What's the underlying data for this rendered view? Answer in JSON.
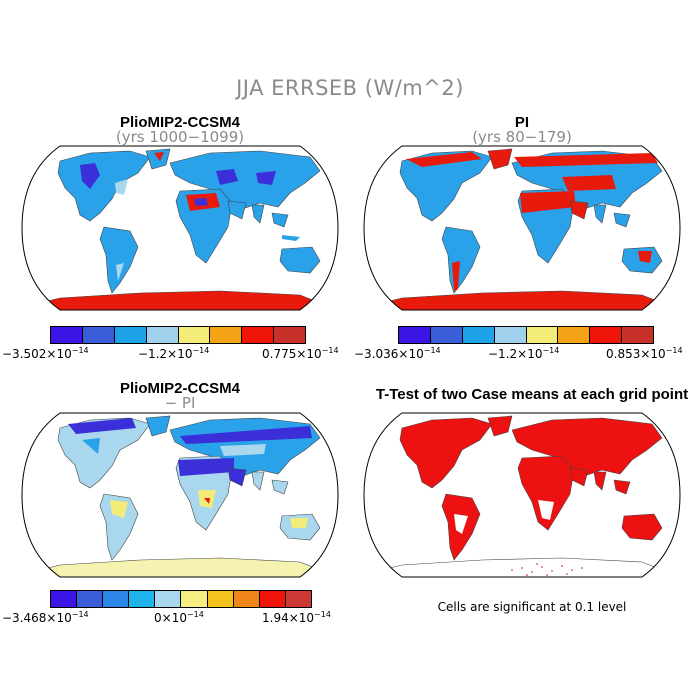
{
  "figure": {
    "title": "JJA ERRSEB (W/m^2)"
  },
  "panels": {
    "p1": {
      "title": "PlioMIP2-CCSM4",
      "subtitle": "(yrs 1000−1099)",
      "colorbar": {
        "colors": [
          "#3b14e6",
          "#3a5ed8",
          "#1fa3e8",
          "#9fd1ec",
          "#f3ec78",
          "#f3a315",
          "#f0150a",
          "#c8302a"
        ],
        "label_left": "−3.502×10",
        "label_mid": "−1.2×10",
        "label_right": "0.775×10",
        "exponent": "−14"
      }
    },
    "p2": {
      "title": "PI",
      "subtitle": "(yrs 80−179)",
      "colorbar": {
        "colors": [
          "#3b14e6",
          "#3a5ed8",
          "#1fa3e8",
          "#9fd1ec",
          "#f3ec78",
          "#f3a315",
          "#f0150a",
          "#c8302a"
        ],
        "label_left": "−3.036×10",
        "label_mid": "−1.2×10",
        "label_right": "0.853×10",
        "exponent": "−14"
      }
    },
    "p3": {
      "title": "PlioMIP2-CCSM4",
      "subtitle": "− PI",
      "colorbar": {
        "colors": [
          "#3b14e6",
          "#3a5ed8",
          "#2b86e8",
          "#1fb4ec",
          "#a9d7ee",
          "#f6ee80",
          "#f4c21c",
          "#f0851a",
          "#f0150a",
          "#cc3a36"
        ],
        "label_left": "−3.468×10",
        "label_mid": "0×10",
        "label_right": "1.94×10",
        "exponent": "−14"
      }
    },
    "p4": {
      "title": "T-Test of two Case means at each grid point",
      "note": "Cells are significant at 0.1 level",
      "fill_color": "#ee1111"
    }
  },
  "fills": {
    "land_blue": "#2aa2ea",
    "land_red": "#e81a0c",
    "land_dark_blue": "#3a2fd8",
    "land_yellow": "#f3ec78",
    "land_light": "#a9d7ee"
  }
}
